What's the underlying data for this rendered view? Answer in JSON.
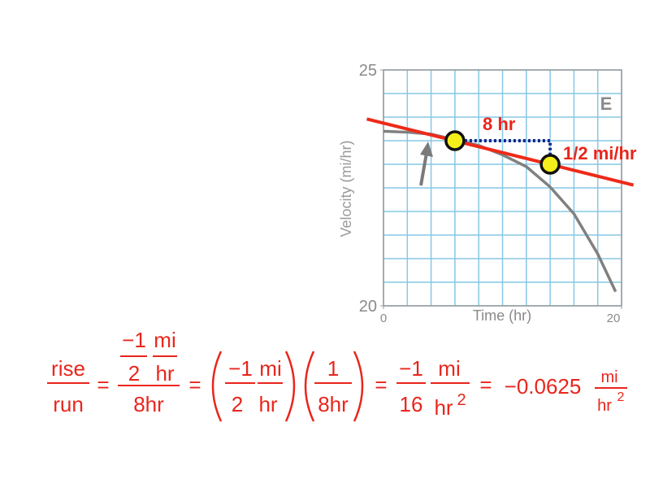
{
  "chart_data": {
    "type": "line",
    "xlabel": "Time (hr)",
    "ylabel": "Velocity (mi/hr)",
    "panel": "E",
    "annotations": [
      "8 hr",
      "1/2 mi/hr"
    ],
    "xlim": [
      0,
      20
    ],
    "ylim": [
      20,
      25
    ],
    "xticks": [
      0,
      20
    ],
    "yticks": [
      20,
      25
    ],
    "xgrid": [
      0,
      2,
      4,
      6,
      8,
      10,
      12,
      14,
      16,
      18,
      20
    ],
    "ygrid": [
      20,
      20.5,
      21,
      21.5,
      22,
      22.5,
      23,
      23.5,
      24,
      24.5,
      25
    ],
    "grid_color": "#86c8e4",
    "curve": {
      "color": "#808080",
      "x": [
        0,
        2,
        4,
        6,
        8,
        10,
        12,
        14,
        16,
        18,
        19.5
      ],
      "values": [
        23.7,
        23.68,
        23.64,
        23.52,
        23.4,
        23.2,
        22.95,
        22.52,
        21.95,
        21.1,
        20.3
      ]
    },
    "tangent": {
      "color": "#ee2a18",
      "x": [
        -1.4,
        21
      ],
      "values": [
        23.96,
        22.56
      ]
    },
    "dotted": {
      "color": "#14238c",
      "x": [
        6,
        14,
        14
      ],
      "values": [
        23.5,
        23.5,
        23
      ]
    },
    "points": {
      "color": "#f4ee1a",
      "x": [
        6,
        14
      ],
      "values": [
        23.5,
        23
      ]
    }
  },
  "equation": {
    "terms": [
      "rise",
      "run",
      "=",
      "−1",
      "2",
      "mi",
      "hr",
      "8hr",
      "=",
      "−1",
      "2",
      "mi",
      "hr",
      "1",
      "8hr",
      "=",
      "−1",
      "16",
      "mi",
      "hr",
      "2",
      "=",
      "−0.0625",
      "mi",
      "hr",
      "2"
    ]
  }
}
